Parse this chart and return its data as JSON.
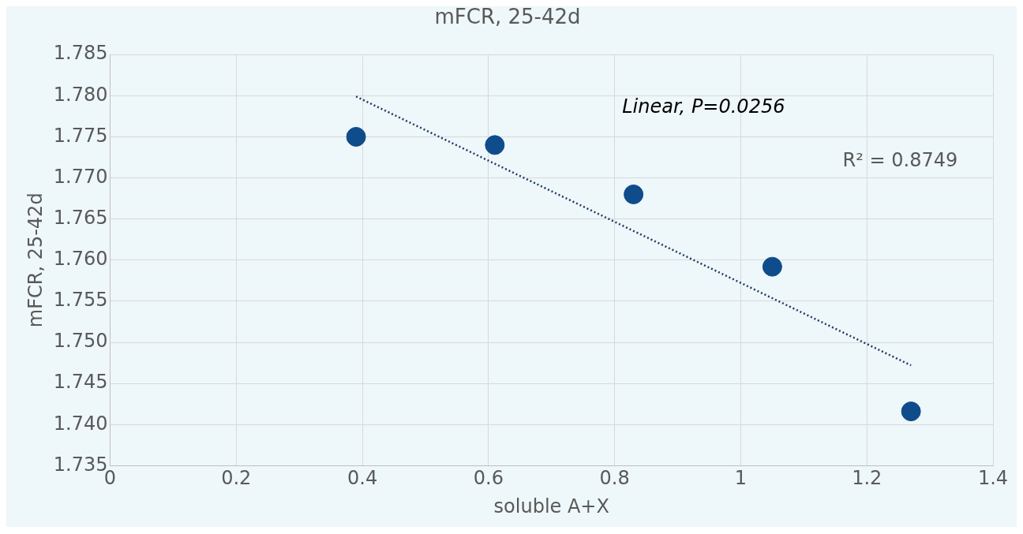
{
  "chart_data": {
    "type": "scatter",
    "title": "mFCR, 25-42d",
    "xlabel": "soluble A+X",
    "ylabel": "mFCR, 25-42d",
    "series": [
      {
        "color": "#0f4c8c",
        "marker": "circle",
        "x": [
          0.39,
          0.61,
          0.83,
          1.05,
          1.27
        ],
        "values": [
          1.775,
          1.774,
          1.768,
          1.7592,
          1.7416
        ]
      },
      {
        "type": "line",
        "color": "#1f3864",
        "marker": "none",
        "line_style": "dotted",
        "x": [
          0.39,
          1.27
        ],
        "values": [
          1.7799,
          1.7472
        ]
      }
    ],
    "xlim": [
      0,
      1.4
    ],
    "xticks": [
      0,
      0.2,
      0.4,
      0.6,
      0.8,
      1,
      1.2,
      1.4
    ],
    "ylim": [
      1.735,
      1.785
    ],
    "yticks": [
      1.735,
      {
        "value": 1.74,
        "label": "1.740"
      },
      1.745,
      {
        "value": 1.75,
        "label": "1.750"
      },
      1.755,
      {
        "value": 1.76,
        "label": "1.760"
      },
      1.765,
      {
        "value": 1.77,
        "label": "1.770"
      },
      1.775,
      {
        "value": 1.78,
        "label": "1.780"
      },
      1.785
    ],
    "annotations": [
      "Linear, P=0.0256",
      "R² = 0.8749"
    ],
    "grid": true,
    "legend": false
  }
}
